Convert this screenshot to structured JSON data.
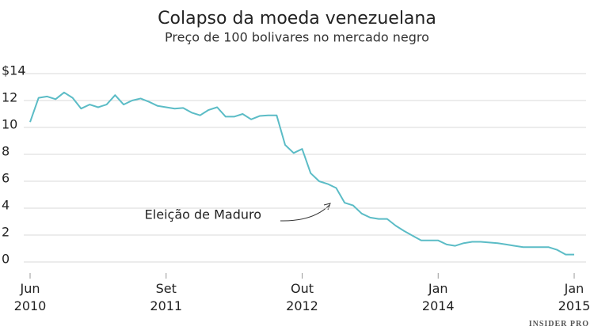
{
  "chart_data": {
    "type": "line",
    "title": "Colapso da moeda venezuelana",
    "subtitle": "Preço de 100 bolivares no mercado negro",
    "annotation": "Eleição de Maduro",
    "source": "INSIDER PRO",
    "categories": [
      "Jun 2010",
      null,
      null,
      null,
      null,
      null,
      null,
      null,
      null,
      null,
      null,
      null,
      null,
      null,
      null,
      null,
      "Set 2011",
      null,
      null,
      null,
      null,
      null,
      null,
      null,
      null,
      null,
      null,
      null,
      null,
      null,
      null,
      null,
      "Out 2012",
      null,
      null,
      null,
      null,
      null,
      null,
      null,
      null,
      null,
      null,
      null,
      null,
      null,
      null,
      null,
      "Jan 2014",
      null,
      null,
      null,
      null,
      null,
      null,
      null,
      null,
      null,
      null,
      null,
      null,
      null,
      null,
      null,
      "Jan 2015"
    ],
    "series": [
      {
        "color": "#5bbcc6",
        "values": [
          10.4,
          12.2,
          12.3,
          12.1,
          12.6,
          12.2,
          11.4,
          11.7,
          11.5,
          11.7,
          12.4,
          11.7,
          12.0,
          12.15,
          11.9,
          11.6,
          11.5,
          11.4,
          11.45,
          11.1,
          10.9,
          11.3,
          11.5,
          10.8,
          10.8,
          11.0,
          10.6,
          10.85,
          10.9,
          10.9,
          8.7,
          8.1,
          8.4,
          6.6,
          6.0,
          5.8,
          5.5,
          4.4,
          4.2,
          3.6,
          3.3,
          3.2,
          3.2,
          2.7,
          2.3,
          1.95,
          1.6,
          1.6,
          1.6,
          1.3,
          1.2,
          1.4,
          1.5,
          1.5,
          1.45,
          1.4,
          1.3,
          1.2,
          1.1,
          1.1,
          1.1,
          1.1,
          0.9,
          0.55,
          0.55
        ]
      }
    ],
    "ylim": [
      0,
      14
    ],
    "yticks": [
      0,
      2,
      4,
      6,
      8,
      10,
      12,
      {
        "value": 14,
        "label": "$14"
      }
    ],
    "grid": true
  }
}
